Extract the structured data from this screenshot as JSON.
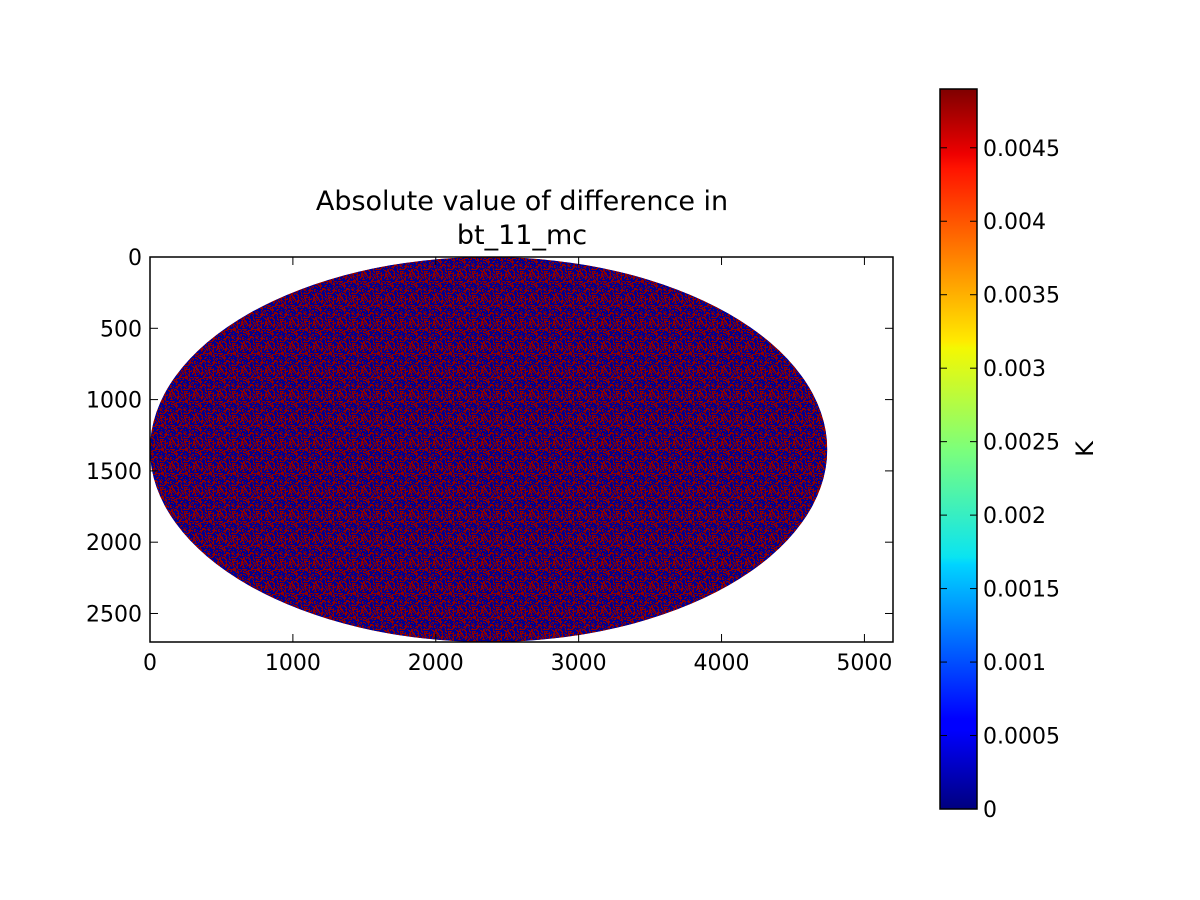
{
  "chart_data": {
    "type": "heatmap",
    "title_lines": [
      "Absolute value of difference in",
      "bt_11_mc"
    ],
    "xlim": [
      0,
      5200
    ],
    "ylim": [
      2700,
      0
    ],
    "x_ticks": [
      0,
      1000,
      2000,
      3000,
      4000,
      5000
    ],
    "y_ticks": [
      0,
      500,
      1000,
      1500,
      2000,
      2500
    ],
    "x_tick_labels": [
      "0",
      "1000",
      "2000",
      "3000",
      "4000",
      "5000"
    ],
    "y_tick_labels": [
      "0",
      "500",
      "1000",
      "1500",
      "2000",
      "2500"
    ],
    "disk": {
      "center_x": 2370,
      "center_y": 1350,
      "radius_x": 2370,
      "radius_y": 1350
    },
    "colorbar": {
      "label": "K",
      "vmin": 0,
      "vmax": 0.0049,
      "ticks": [
        0,
        0.0005,
        0.001,
        0.0015,
        0.002,
        0.0025,
        0.003,
        0.0035,
        0.004,
        0.0045
      ],
      "tick_labels": [
        "0",
        "0.0005",
        "0.001",
        "0.0015",
        "0.002",
        "0.0025",
        "0.003",
        "0.0035",
        "0.004",
        "0.0045"
      ],
      "colormap": "jet"
    },
    "dominant_colors": {
      "low": "#00008f",
      "high": "#8f0000"
    }
  }
}
